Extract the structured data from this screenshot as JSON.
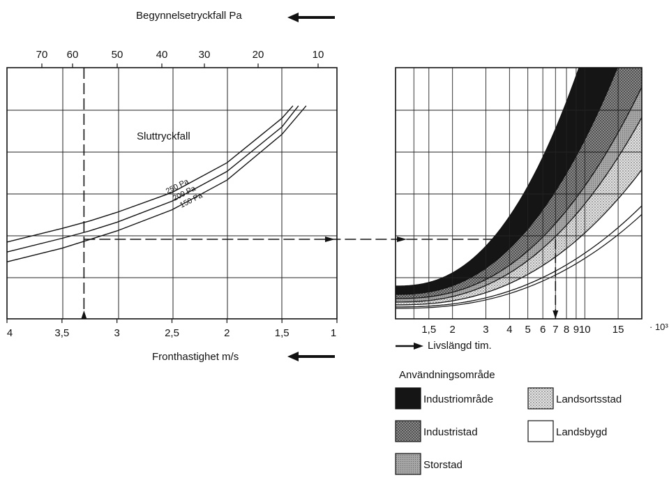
{
  "chart_data": [
    {
      "type": "line",
      "title": "Sluttryckfall",
      "xlabel": "Fronthastighet m/s",
      "x_reversed": true,
      "xlim": [
        4,
        1
      ],
      "x_ticks": [
        "4",
        "3,5",
        "3",
        "2,5",
        "2",
        "1,5",
        "1"
      ],
      "top_axis": {
        "label": "Begynnelsetryckfall Pa",
        "ticks": [
          "70",
          "60",
          "50",
          "40",
          "30",
          "20",
          "10"
        ]
      },
      "grid": true,
      "series": [
        {
          "name": "250 Pa",
          "x": [
            4,
            3.5,
            3.25,
            3,
            2.5,
            2,
            1.5,
            1.4
          ],
          "y": [
            3.1,
            3.65,
            3.95,
            4.3,
            5.1,
            6.3,
            8.1,
            8.6
          ]
        },
        {
          "name": "200 Pa",
          "x": [
            4,
            3.5,
            3.25,
            3,
            2.5,
            2,
            1.5,
            1.35
          ],
          "y": [
            2.7,
            3.25,
            3.55,
            3.9,
            4.75,
            5.95,
            7.75,
            8.6
          ]
        },
        {
          "name": "150 Pa",
          "x": [
            4,
            3.5,
            3.25,
            3,
            2.5,
            2,
            1.5,
            1.28
          ],
          "y": [
            2.3,
            2.85,
            3.2,
            3.55,
            4.4,
            5.6,
            7.45,
            8.6
          ]
        }
      ],
      "reading_line": {
        "x": 3.3,
        "top_value": 58
      }
    },
    {
      "type": "area",
      "xlabel": "Livslängd tim.",
      "x_scale": "log",
      "x_multiplier": "· 10³",
      "x_ticks": [
        "1,5",
        "2",
        "3",
        "4",
        "5",
        "6",
        "7",
        "8",
        "9",
        "10",
        "15"
      ],
      "grid": true,
      "reading_line": {
        "x": 7
      },
      "legend": {
        "title": "Användningsområde",
        "items": [
          {
            "label": "Industriområde",
            "pattern": "black"
          },
          {
            "label": "Industristad",
            "pattern": "dark-stipple"
          },
          {
            "label": "Storstad",
            "pattern": "grey"
          },
          {
            "label": "Landsortsstad",
            "pattern": "light-stipple"
          },
          {
            "label": "Landsbygd",
            "pattern": "white"
          }
        ]
      }
    }
  ]
}
